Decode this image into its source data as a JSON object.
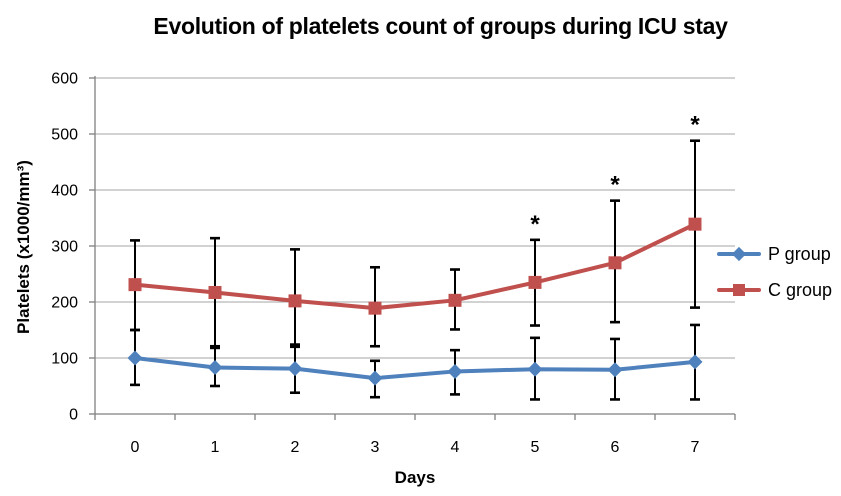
{
  "chart": {
    "title": "Evolution of platelets count of groups during ICU stay",
    "x_axis_label": "Days",
    "y_axis_label": "Platelets (x1000/mm³)"
  },
  "legend": {
    "position": "right",
    "entries": [
      {
        "label": "P group",
        "marker": "diamond",
        "color": "#4F81BD"
      },
      {
        "label": "C group",
        "marker": "square",
        "color": "#C0504D"
      }
    ]
  },
  "chart_data": {
    "type": "line",
    "title": "Evolution of platelets count of groups during ICU stay",
    "xlabel": "Days",
    "ylabel": "Platelets (x1000/mm³)",
    "x": [
      0,
      1,
      2,
      3,
      4,
      5,
      6,
      7
    ],
    "ylim": [
      0,
      600
    ],
    "y_ticks": [
      0,
      100,
      200,
      300,
      400,
      500,
      600
    ],
    "grid": "horizontal",
    "legend_position": "right",
    "error_bars": true,
    "series": [
      {
        "name": "P group",
        "marker": "diamond",
        "color": "#4F81BD",
        "values": [
          100,
          83,
          81,
          64,
          76,
          80,
          79,
          93
        ],
        "error_upper": [
          150,
          118,
          120,
          95,
          114,
          136,
          134,
          159
        ],
        "error_lower": [
          52,
          50,
          38,
          30,
          35,
          26,
          26,
          26
        ]
      },
      {
        "name": "C group",
        "marker": "square",
        "color": "#C0504D",
        "values": [
          231,
          217,
          202,
          189,
          203,
          235,
          270,
          339
        ],
        "error_upper": [
          310,
          314,
          294,
          262,
          258,
          311,
          381,
          488
        ],
        "error_lower": [
          150,
          121,
          124,
          121,
          151,
          158,
          164,
          190
        ]
      }
    ],
    "annotations": [
      {
        "symbol": "*",
        "series": "C group",
        "x": 5
      },
      {
        "symbol": "*",
        "series": "C group",
        "x": 6
      },
      {
        "symbol": "*",
        "series": "C group",
        "x": 7
      }
    ]
  },
  "colors": {
    "background": "#FFFFFF",
    "gridline": "#A6A6A6",
    "axis": "#808080",
    "tick_label": "#000000",
    "error_bar": "#000000"
  }
}
